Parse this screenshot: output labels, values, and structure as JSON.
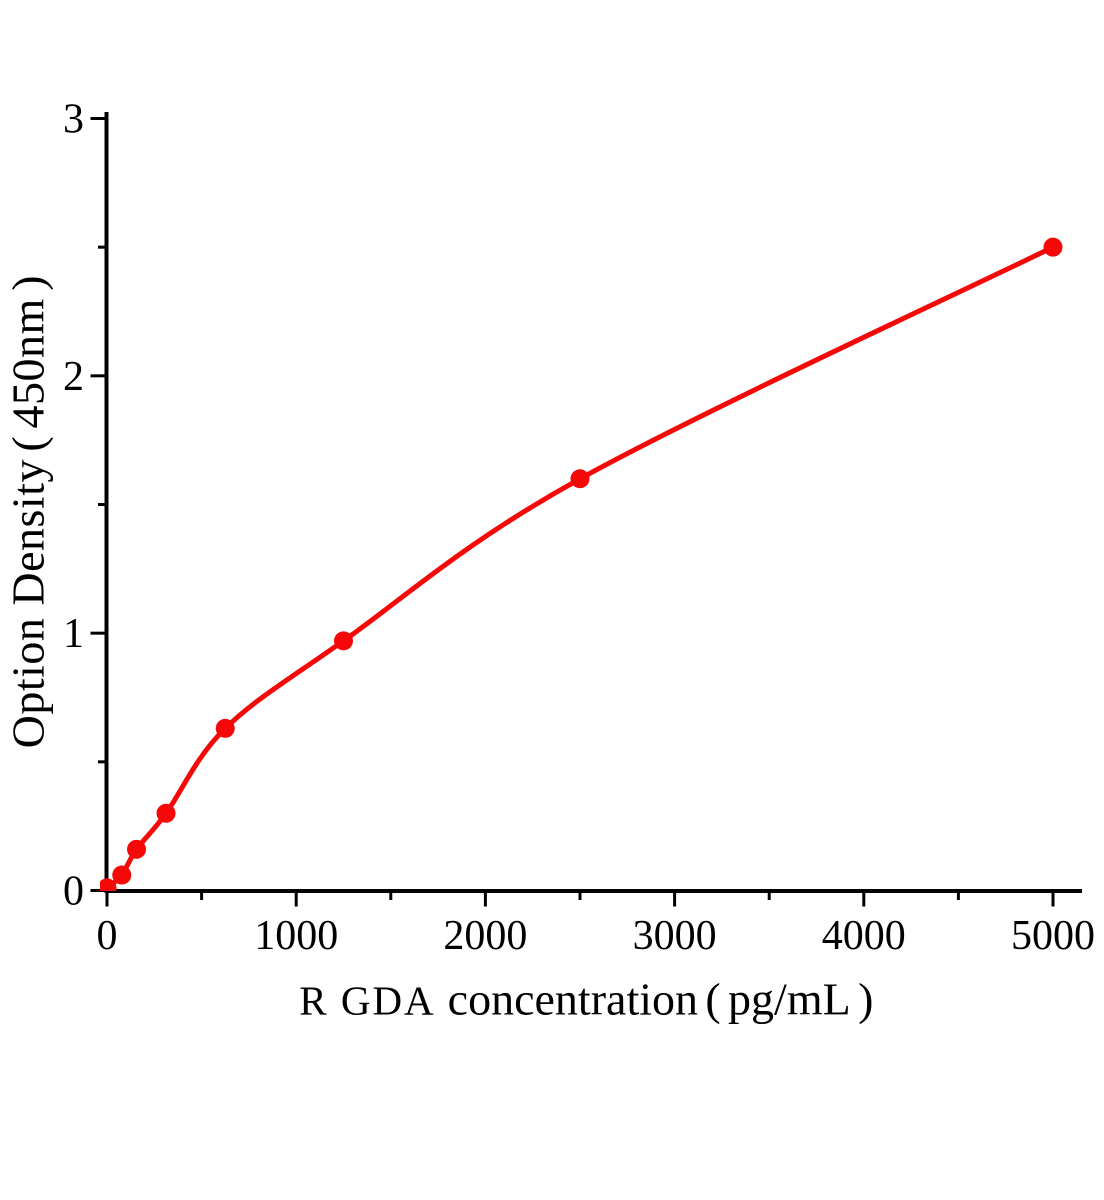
{
  "chart_data": {
    "type": "line",
    "title": "",
    "xlabel": "R GDA concentration（pg/mL）",
    "xlabel_prefix": "R GDA",
    "xlabel_rest": "concentration（pg/mL）",
    "ylabel": "Option Density（450nm）",
    "x": [
      0,
      78,
      156,
      312,
      625,
      1250,
      2500,
      5000
    ],
    "y": [
      0.01,
      0.06,
      0.16,
      0.3,
      0.63,
      0.97,
      1.6,
      2.5
    ],
    "xlim": [
      0,
      5150
    ],
    "ylim": [
      0,
      3
    ],
    "x_ticks_major": [
      0,
      1000,
      2000,
      3000,
      4000,
      5000
    ],
    "x_ticks_minor": [
      500,
      1500,
      2500,
      3500,
      4500
    ],
    "y_ticks_major": [
      0,
      1,
      2,
      3
    ],
    "y_ticks_minor": [
      0.5,
      1.5,
      2.5
    ],
    "grid": false,
    "legend_position": "none",
    "colors": {
      "curve": "#f50808",
      "marker": "#f50808",
      "axis": "#000000",
      "text": "#000000",
      "background": "#ffffff"
    }
  }
}
